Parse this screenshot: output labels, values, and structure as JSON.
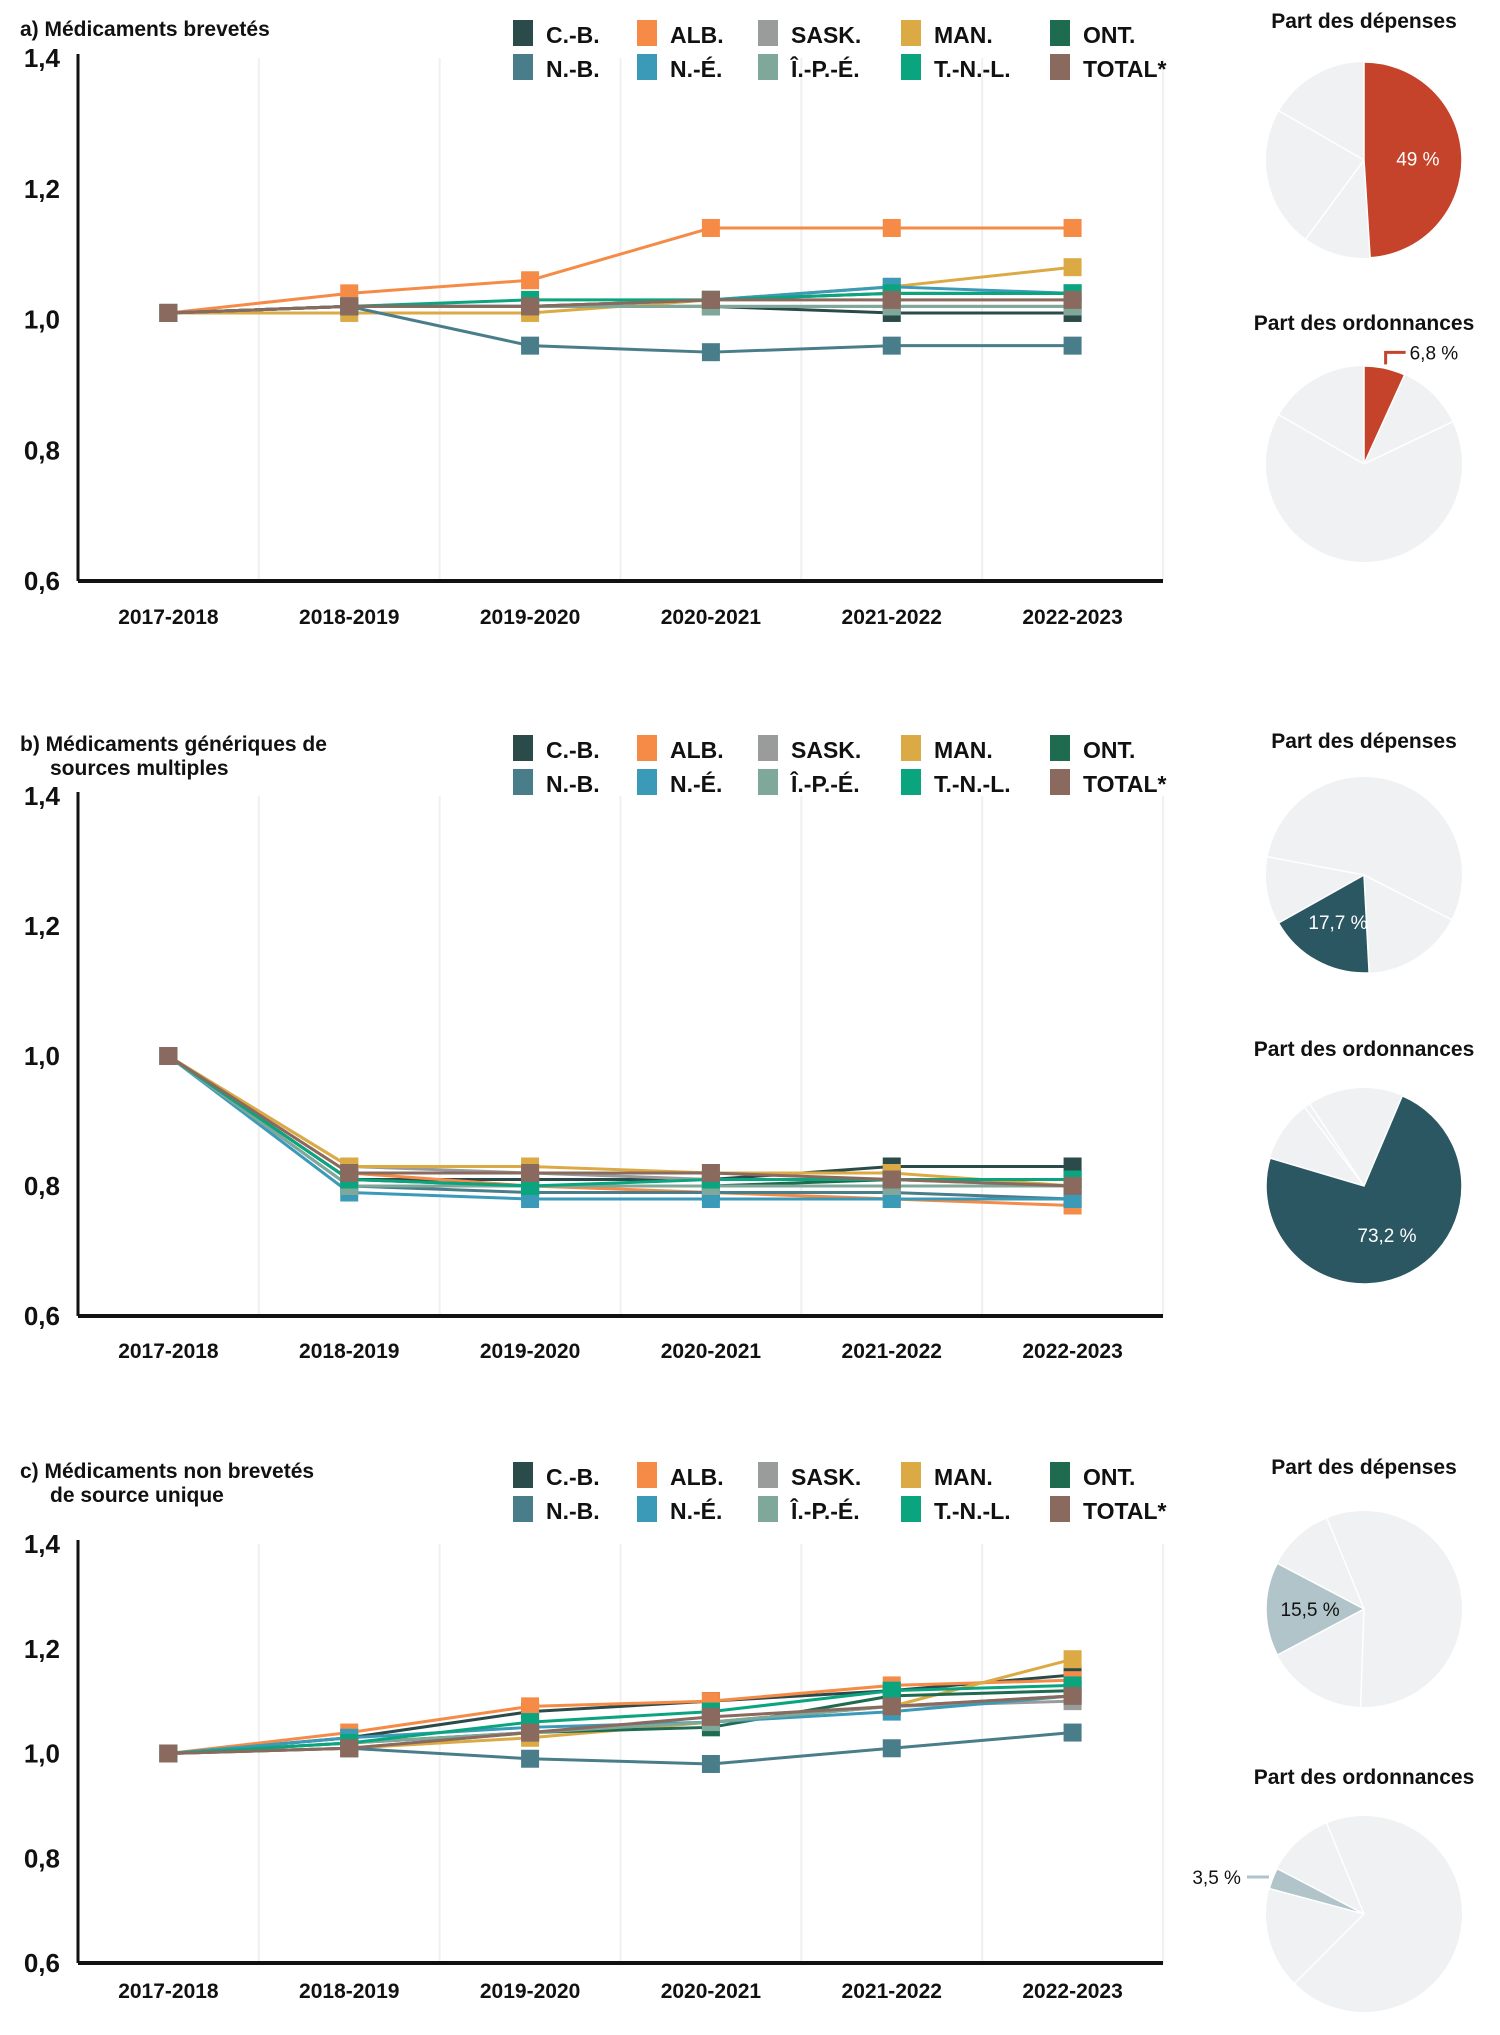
{
  "chart_data": [
    {
      "type": "line",
      "title": "a) Médicaments brevetés",
      "categories": [
        "2017-2018",
        "2018-2019",
        "2019-2020",
        "2020-2021",
        "2021-2022",
        "2022-2023"
      ],
      "ylim": [
        0.6,
        1.4
      ],
      "yticks": [
        "0,6",
        "0,8",
        "1,0",
        "1,2",
        "1,4"
      ],
      "ytick_values": [
        0.6,
        0.8,
        1.0,
        1.2,
        1.4
      ],
      "grid": "vertical",
      "series": [
        {
          "name": "C.-B.",
          "color": "#2b4a4a",
          "values": [
            1.01,
            1.02,
            1.02,
            1.02,
            1.01,
            1.01
          ]
        },
        {
          "name": "ALB.",
          "color": "#f58b47",
          "values": [
            1.01,
            1.04,
            1.06,
            1.14,
            1.14,
            1.14
          ]
        },
        {
          "name": "SASK.",
          "color": "#9a9c9c",
          "values": [
            1.01,
            1.02,
            1.02,
            1.02,
            1.02,
            1.02
          ]
        },
        {
          "name": "MAN.",
          "color": "#dcaa45",
          "values": [
            1.01,
            1.01,
            1.01,
            1.03,
            1.05,
            1.08
          ]
        },
        {
          "name": "ONT.",
          "color": "#1f6b50",
          "values": [
            1.01,
            1.02,
            1.02,
            1.03,
            1.04,
            1.04
          ]
        },
        {
          "name": "N.-B.",
          "color": "#4a7d8a",
          "values": [
            1.01,
            1.02,
            0.96,
            0.95,
            0.96,
            0.96
          ]
        },
        {
          "name": "N.-É.",
          "color": "#3a9ab8",
          "values": [
            1.01,
            1.02,
            1.02,
            1.03,
            1.05,
            1.04
          ]
        },
        {
          "name": "Î.-P.-É.",
          "color": "#7fa79a",
          "values": [
            1.01,
            1.02,
            1.02,
            1.02,
            1.02,
            1.02
          ]
        },
        {
          "name": "T.-N.-L.",
          "color": "#0aa57e",
          "values": [
            1.01,
            1.02,
            1.03,
            1.03,
            1.04,
            1.04
          ]
        },
        {
          "name": "TOTAL*",
          "color": "#8a6a5e",
          "values": [
            1.01,
            1.02,
            1.02,
            1.03,
            1.03,
            1.03
          ]
        }
      ],
      "pies": [
        {
          "title": "Part des dépenses",
          "percent": 49,
          "label": "49 %",
          "color": "#c4432a",
          "label_color": "#ffffff"
        },
        {
          "title": "Part des ordonnances",
          "percent": 6.8,
          "label": "6,8 %",
          "color": "#c4432a",
          "label_color": "#111111"
        }
      ]
    },
    {
      "type": "line",
      "title": "b) Médicaments génériques de",
      "title_line2": "sources multiples",
      "categories": [
        "2017-2018",
        "2018-2019",
        "2019-2020",
        "2020-2021",
        "2021-2022",
        "2022-2023"
      ],
      "ylim": [
        0.6,
        1.4
      ],
      "yticks": [
        "0,6",
        "0,8",
        "1,0",
        "1,2",
        "1,4"
      ],
      "ytick_values": [
        0.6,
        0.8,
        1.0,
        1.2,
        1.4
      ],
      "grid": "vertical",
      "series": [
        {
          "name": "C.-B.",
          "color": "#2b4a4a",
          "values": [
            1.0,
            0.81,
            0.81,
            0.81,
            0.83,
            0.83
          ]
        },
        {
          "name": "ALB.",
          "color": "#f58b47",
          "values": [
            1.0,
            0.82,
            0.8,
            0.79,
            0.78,
            0.77
          ]
        },
        {
          "name": "SASK.",
          "color": "#9a9c9c",
          "values": [
            1.0,
            0.83,
            0.82,
            0.81,
            0.81,
            0.8
          ]
        },
        {
          "name": "MAN.",
          "color": "#dcaa45",
          "values": [
            1.0,
            0.83,
            0.83,
            0.82,
            0.82,
            0.8
          ]
        },
        {
          "name": "ONT.",
          "color": "#1f6b50",
          "values": [
            1.0,
            0.81,
            0.8,
            0.8,
            0.81,
            0.81
          ]
        },
        {
          "name": "N.-B.",
          "color": "#4a7d8a",
          "values": [
            1.0,
            0.8,
            0.79,
            0.79,
            0.79,
            0.78
          ]
        },
        {
          "name": "N.-É.",
          "color": "#3a9ab8",
          "values": [
            1.0,
            0.79,
            0.78,
            0.78,
            0.78,
            0.78
          ]
        },
        {
          "name": "Î.-P.-É.",
          "color": "#7fa79a",
          "values": [
            1.0,
            0.8,
            0.8,
            0.8,
            0.8,
            0.8
          ]
        },
        {
          "name": "T.-N.-L.",
          "color": "#0aa57e",
          "values": [
            1.0,
            0.81,
            0.8,
            0.81,
            0.81,
            0.81
          ]
        },
        {
          "name": "TOTAL*",
          "color": "#8a6a5e",
          "values": [
            1.0,
            0.82,
            0.82,
            0.82,
            0.81,
            0.8
          ]
        }
      ],
      "pies": [
        {
          "title": "Part des dépenses",
          "percent": 17.7,
          "label": "17,7 %",
          "color": "#2a5762",
          "label_color": "#ffffff"
        },
        {
          "title": "Part des ordonnances",
          "percent": 73.2,
          "label": "73,2 %",
          "color": "#2a5762",
          "label_color": "#ffffff"
        }
      ]
    },
    {
      "type": "line",
      "title": "c)  Médicaments non brevetés",
      "title_line2": "de source unique",
      "categories": [
        "2017-2018",
        "2018-2019",
        "2019-2020",
        "2020-2021",
        "2021-2022",
        "2022-2023"
      ],
      "ylim": [
        0.6,
        1.4
      ],
      "yticks": [
        "0,6",
        "0,8",
        "1,0",
        "1,2",
        "1,4"
      ],
      "ytick_values": [
        0.6,
        0.8,
        1.0,
        1.2,
        1.4
      ],
      "grid": "vertical",
      "series": [
        {
          "name": "C.-B.",
          "color": "#2b4a4a",
          "values": [
            1.0,
            1.03,
            1.08,
            1.1,
            1.12,
            1.15
          ]
        },
        {
          "name": "ALB.",
          "color": "#f58b47",
          "values": [
            1.0,
            1.04,
            1.09,
            1.1,
            1.13,
            1.14
          ]
        },
        {
          "name": "SASK.",
          "color": "#9a9c9c",
          "values": [
            1.0,
            1.01,
            1.04,
            1.06,
            1.09,
            1.1
          ]
        },
        {
          "name": "MAN.",
          "color": "#dcaa45",
          "values": [
            1.0,
            1.01,
            1.03,
            1.06,
            1.09,
            1.18
          ]
        },
        {
          "name": "ONT.",
          "color": "#1f6b50",
          "values": [
            1.0,
            1.02,
            1.04,
            1.05,
            1.11,
            1.12
          ]
        },
        {
          "name": "N.-B.",
          "color": "#4a7d8a",
          "values": [
            1.0,
            1.01,
            0.99,
            0.98,
            1.01,
            1.04
          ]
        },
        {
          "name": "N.-É.",
          "color": "#3a9ab8",
          "values": [
            1.0,
            1.03,
            1.05,
            1.06,
            1.08,
            1.11
          ]
        },
        {
          "name": "Î.-P.-É.",
          "color": "#7fa79a",
          "values": [
            1.0,
            1.02,
            1.04,
            1.06,
            1.09,
            1.11
          ]
        },
        {
          "name": "T.-N.-L.",
          "color": "#0aa57e",
          "values": [
            1.0,
            1.02,
            1.06,
            1.08,
            1.12,
            1.13
          ]
        },
        {
          "name": "TOTAL*",
          "color": "#8a6a5e",
          "values": [
            1.0,
            1.01,
            1.04,
            1.07,
            1.09,
            1.11
          ]
        }
      ],
      "pies": [
        {
          "title": "Part des dépenses",
          "percent": 15.5,
          "label": "15,5 %",
          "color": "#b0c4c9",
          "label_color": "#111111"
        },
        {
          "title": "Part des ordonnances",
          "percent": 3.5,
          "label": "3,5 %",
          "color": "#b0c4c9",
          "label_color": "#111111"
        }
      ]
    }
  ]
}
